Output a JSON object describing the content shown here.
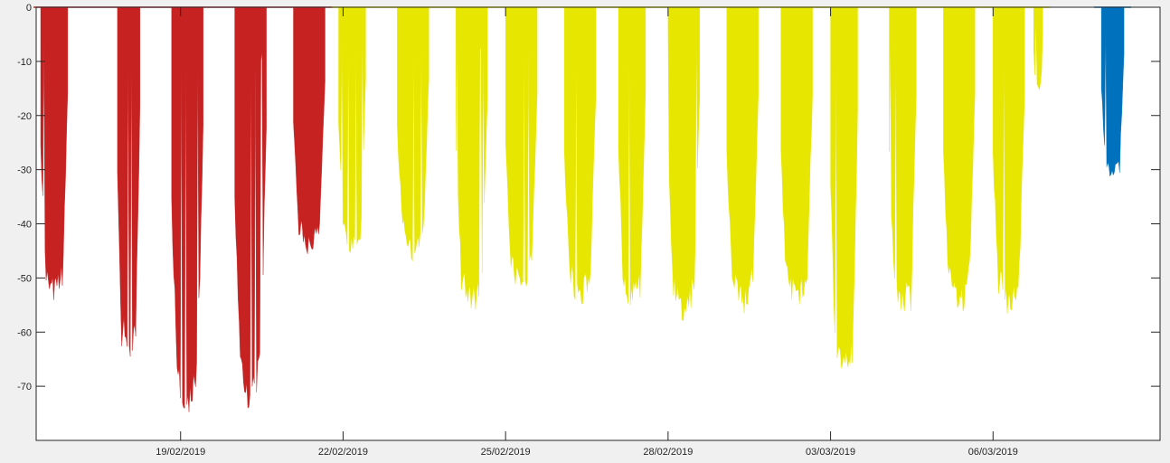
{
  "chart_data": {
    "type": "area",
    "title": "",
    "xlabel": "",
    "ylabel": "",
    "xlim": [
      "2019-02-16T08:00",
      "2019-03-09T02:00"
    ],
    "ylim": [
      -80,
      0
    ],
    "grid": false,
    "legend": "none",
    "x_ticks": [
      "19/02/2019",
      "22/02/2019",
      "25/02/2019",
      "28/02/2019",
      "03/03/2019",
      "06/03/2019"
    ],
    "y_ticks": [
      0,
      -10,
      -20,
      -30,
      -40,
      -50,
      -60,
      -70
    ],
    "series": [
      {
        "color": "#c72222",
        "bursts": [
          {
            "start": "2019-02-16T10:00",
            "end": "2019-02-16T22:00",
            "depth": -55
          },
          {
            "start": "2019-02-17T20:00",
            "end": "2019-02-18T06:00",
            "depth": -66
          },
          {
            "start": "2019-02-18T20:00",
            "end": "2019-02-19T10:00",
            "depth": -76
          },
          {
            "start": "2019-02-20T00:00",
            "end": "2019-02-20T14:00",
            "depth": -76
          },
          {
            "start": "2019-02-21T02:00",
            "end": "2019-02-21T16:00",
            "depth": -46
          }
        ]
      },
      {
        "color": "#e6e600",
        "bursts": [
          {
            "start": "2019-02-21T22:00",
            "end": "2019-02-22T10:00",
            "depth": -46
          },
          {
            "start": "2019-02-23T00:00",
            "end": "2019-02-23T14:00",
            "depth": -47
          },
          {
            "start": "2019-02-24T02:00",
            "end": "2019-02-24T16:00",
            "depth": -57
          },
          {
            "start": "2019-02-25T00:00",
            "end": "2019-02-25T14:00",
            "depth": -54
          },
          {
            "start": "2019-02-26T02:00",
            "end": "2019-02-26T16:00",
            "depth": -56
          },
          {
            "start": "2019-02-27T02:00",
            "end": "2019-02-27T14:00",
            "depth": -56
          },
          {
            "start": "2019-02-28T00:00",
            "end": "2019-02-28T14:00",
            "depth": -59
          },
          {
            "start": "2019-03-01T02:00",
            "end": "2019-03-01T16:00",
            "depth": -57
          },
          {
            "start": "2019-03-02T02:00",
            "end": "2019-03-02T16:00",
            "depth": -56
          },
          {
            "start": "2019-03-03T00:00",
            "end": "2019-03-03T12:00",
            "depth": -70
          },
          {
            "start": "2019-03-04T02:00",
            "end": "2019-03-04T14:00",
            "depth": -57
          },
          {
            "start": "2019-03-05T02:00",
            "end": "2019-03-05T16:00",
            "depth": -57
          },
          {
            "start": "2019-03-06T00:00",
            "end": "2019-03-06T14:00",
            "depth": -57
          },
          {
            "start": "2019-03-06T18:00",
            "end": "2019-03-06T22:00",
            "depth": -16
          }
        ]
      },
      {
        "color": "#0072bd",
        "bursts": [
          {
            "start": "2019-03-08T00:00",
            "end": "2019-03-08T10:00",
            "depth": -32
          }
        ]
      }
    ]
  }
}
